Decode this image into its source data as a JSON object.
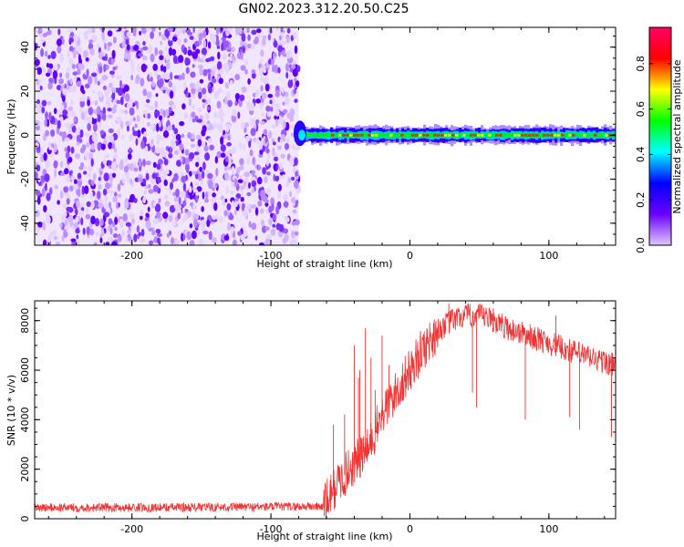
{
  "title": "GN02.2023.312.20.50.C25",
  "chart_data": [
    {
      "type": "heatmap",
      "name": "spectrogram",
      "xlabel": "Height of straight line (km)",
      "ylabel": "Frequency (Hz)",
      "xlim": [
        -270,
        148
      ],
      "ylim": [
        -50,
        49
      ],
      "x_ticks": [
        -200,
        -100,
        0,
        100
      ],
      "y_ticks": [
        -40,
        -20,
        0,
        20,
        40
      ],
      "noise_region_x": [
        -270,
        -80
      ],
      "signal_band_x": [
        -83,
        148
      ],
      "signal_band_freq_hz": 0,
      "colorbar": {
        "label": "Normalized spectral amplitude",
        "range": [
          0,
          1
        ],
        "ticks": [
          "0.0",
          "0.2",
          "0.4",
          "0.6",
          "0.8"
        ],
        "colors": [
          "#e0c8ff",
          "#6a00ff",
          "#0000ff",
          "#00ffff",
          "#00ff00",
          "#ffff00",
          "#ff0000",
          "#ff0066"
        ]
      }
    },
    {
      "type": "line",
      "name": "snr",
      "xlabel": "Height of straight line (km)",
      "ylabel": "SNR (10 * v/v)",
      "xlim": [
        -270,
        148
      ],
      "ylim": [
        0,
        8800
      ],
      "x_ticks": [
        -200,
        -100,
        0,
        100
      ],
      "y_ticks": [
        0,
        2000,
        4000,
        6000,
        8000
      ],
      "color": "#ee3333",
      "envelope": [
        [
          -270,
          450
        ],
        [
          -200,
          450
        ],
        [
          -100,
          480
        ],
        [
          -62,
          500
        ],
        [
          -55,
          1200
        ],
        [
          -45,
          1900
        ],
        [
          -30,
          2800
        ],
        [
          -20,
          4200
        ],
        [
          -10,
          5100
        ],
        [
          0,
          6000
        ],
        [
          10,
          6900
        ],
        [
          20,
          7600
        ],
        [
          30,
          8000
        ],
        [
          40,
          8200
        ],
        [
          50,
          8200
        ],
        [
          60,
          8000
        ],
        [
          70,
          7700
        ],
        [
          80,
          7500
        ],
        [
          90,
          7300
        ],
        [
          100,
          7100
        ],
        [
          110,
          6900
        ],
        [
          120,
          6700
        ],
        [
          130,
          6500
        ],
        [
          148,
          6200
        ]
      ],
      "spikes": [
        [
          -40,
          7000
        ],
        [
          -37,
          5700
        ],
        [
          -32,
          7700
        ],
        [
          -25,
          5200
        ],
        [
          -20,
          7400
        ],
        [
          -15,
          6200
        ],
        [
          -55,
          3800
        ],
        [
          -47,
          4200
        ],
        [
          -36,
          6000
        ],
        [
          -28,
          6500
        ],
        [
          28,
          8700
        ],
        [
          45,
          5100
        ],
        [
          48,
          4500
        ],
        [
          83,
          4000
        ],
        [
          115,
          4100
        ],
        [
          122,
          3600
        ],
        [
          145,
          3300
        ],
        [
          105,
          8200
        ],
        [
          60,
          8500
        ]
      ]
    }
  ]
}
